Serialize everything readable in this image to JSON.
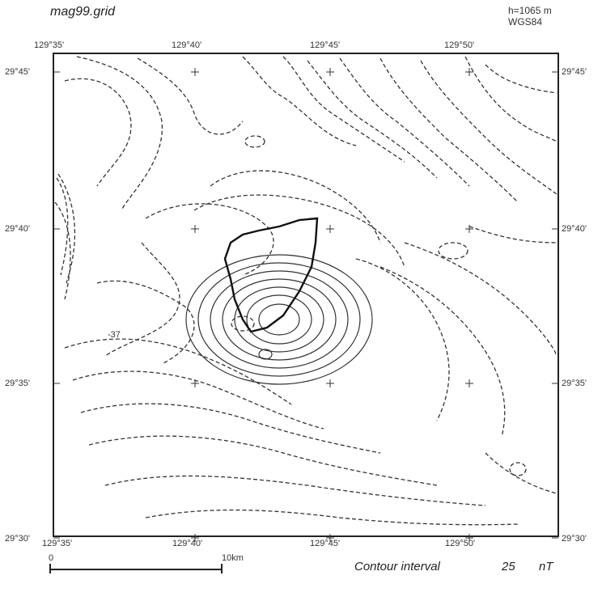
{
  "title": "mag99.grid",
  "altitude": "h=1065  m",
  "datum": "WGS84",
  "top_lon_labels": [
    "129°35'",
    "129°40'",
    "129°45'",
    "129°50'"
  ],
  "bottom_lon_labels": [
    "129°35'",
    "129°40'",
    "129°45'",
    "129°50'"
  ],
  "left_lat_labels": [
    "29°45'",
    "29°40'",
    "29°35'",
    "29°30'"
  ],
  "right_lat_labels": [
    "29°45'",
    "29°40'",
    "29°35'",
    "29°30'"
  ],
  "scale_bar": {
    "start": "0",
    "end": "10km"
  },
  "contour_note": {
    "text": "Contour interval",
    "value": "25",
    "unit": "nT"
  },
  "labels": [
    "-37"
  ],
  "colors": {
    "contour": "#333333",
    "island": "#111111",
    "frame": "#222222",
    "background": "#ffffff"
  }
}
